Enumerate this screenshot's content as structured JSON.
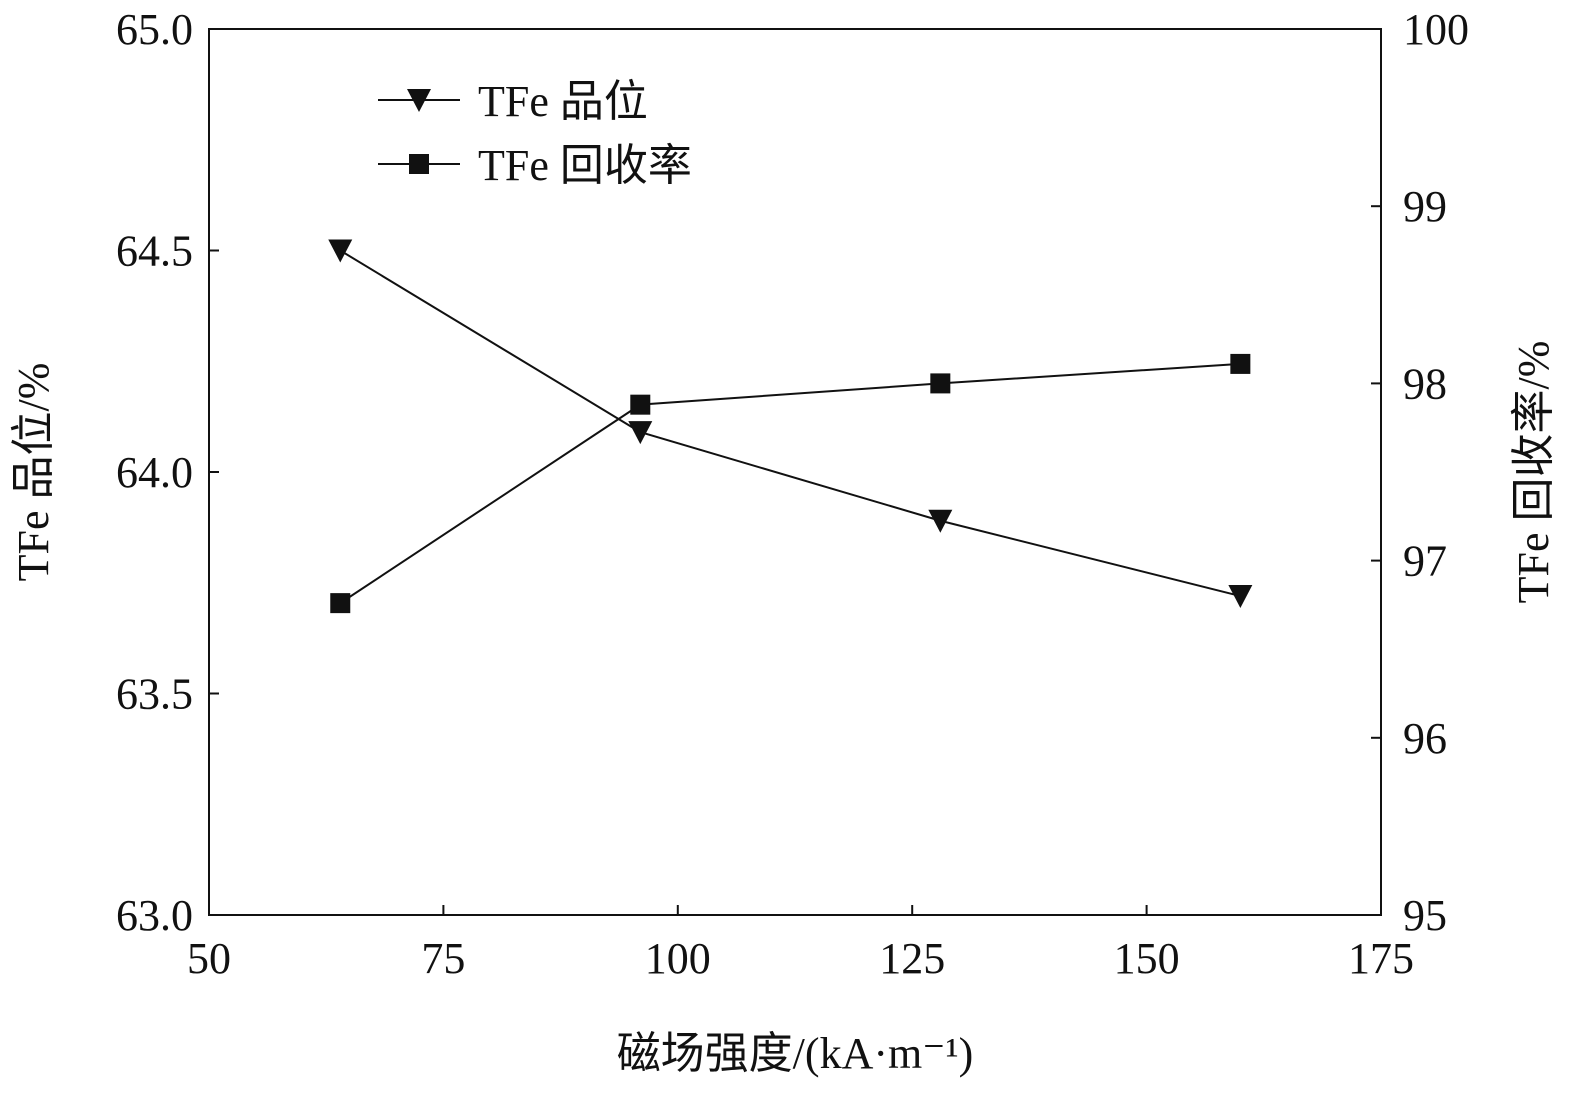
{
  "chart_data": {
    "type": "line",
    "x_label": "磁场强度/(kA·m⁻¹)",
    "y_label": "TFe 品位/%",
    "y2_label": "TFe 回收率/%",
    "x": [
      64,
      96,
      128,
      160
    ],
    "xlim": [
      50,
      175
    ],
    "xticks": [
      50,
      75,
      100,
      125,
      150,
      175
    ],
    "ylim": [
      63,
      65
    ],
    "yticks": [
      {
        "value": 63,
        "label": "63.0"
      },
      63.5,
      {
        "value": 64,
        "label": "64.0"
      },
      64.5,
      {
        "value": 65,
        "label": "65.0"
      }
    ],
    "y2lim": [
      95,
      100
    ],
    "y2ticks": [
      95,
      96,
      97,
      98,
      99,
      100
    ],
    "legend": "upper-left",
    "series": [
      {
        "name": "TFe 品位",
        "color": "#111111",
        "marker": "triangle-down",
        "values": [
          64.5,
          64.09,
          63.89,
          63.72
        ]
      },
      {
        "name": "TFe 回收率",
        "color": "#111111",
        "marker": "square",
        "axis": "y2",
        "values": [
          96.76,
          97.88,
          98.0,
          98.11
        ]
      }
    ]
  }
}
